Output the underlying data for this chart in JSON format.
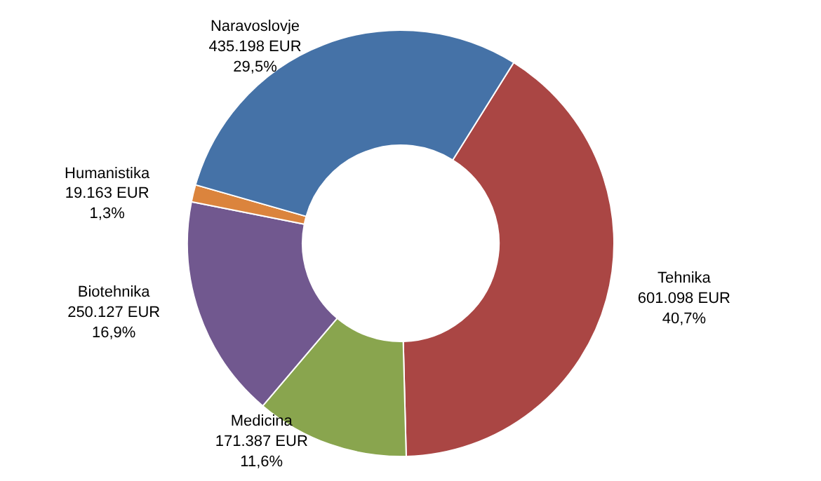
{
  "chart_data": {
    "type": "donut",
    "categories": [
      "Tehnika",
      "Medicina",
      "Biotehnika",
      "Humanistika",
      "Naravoslovje"
    ],
    "values": [
      601098,
      171387,
      250127,
      19163,
      435198
    ],
    "colors": [
      "#aa4644",
      "#89a54e",
      "#71588f",
      "#db843d",
      "#4572a7"
    ],
    "value_labels": [
      "601.098 EUR\n40,7%",
      "171.387 EUR\n11,6%",
      "250.127 EUR\n16,9%",
      "19.163 EUR\n1,3%",
      "435.198 EUR\n29,5%"
    ]
  }
}
